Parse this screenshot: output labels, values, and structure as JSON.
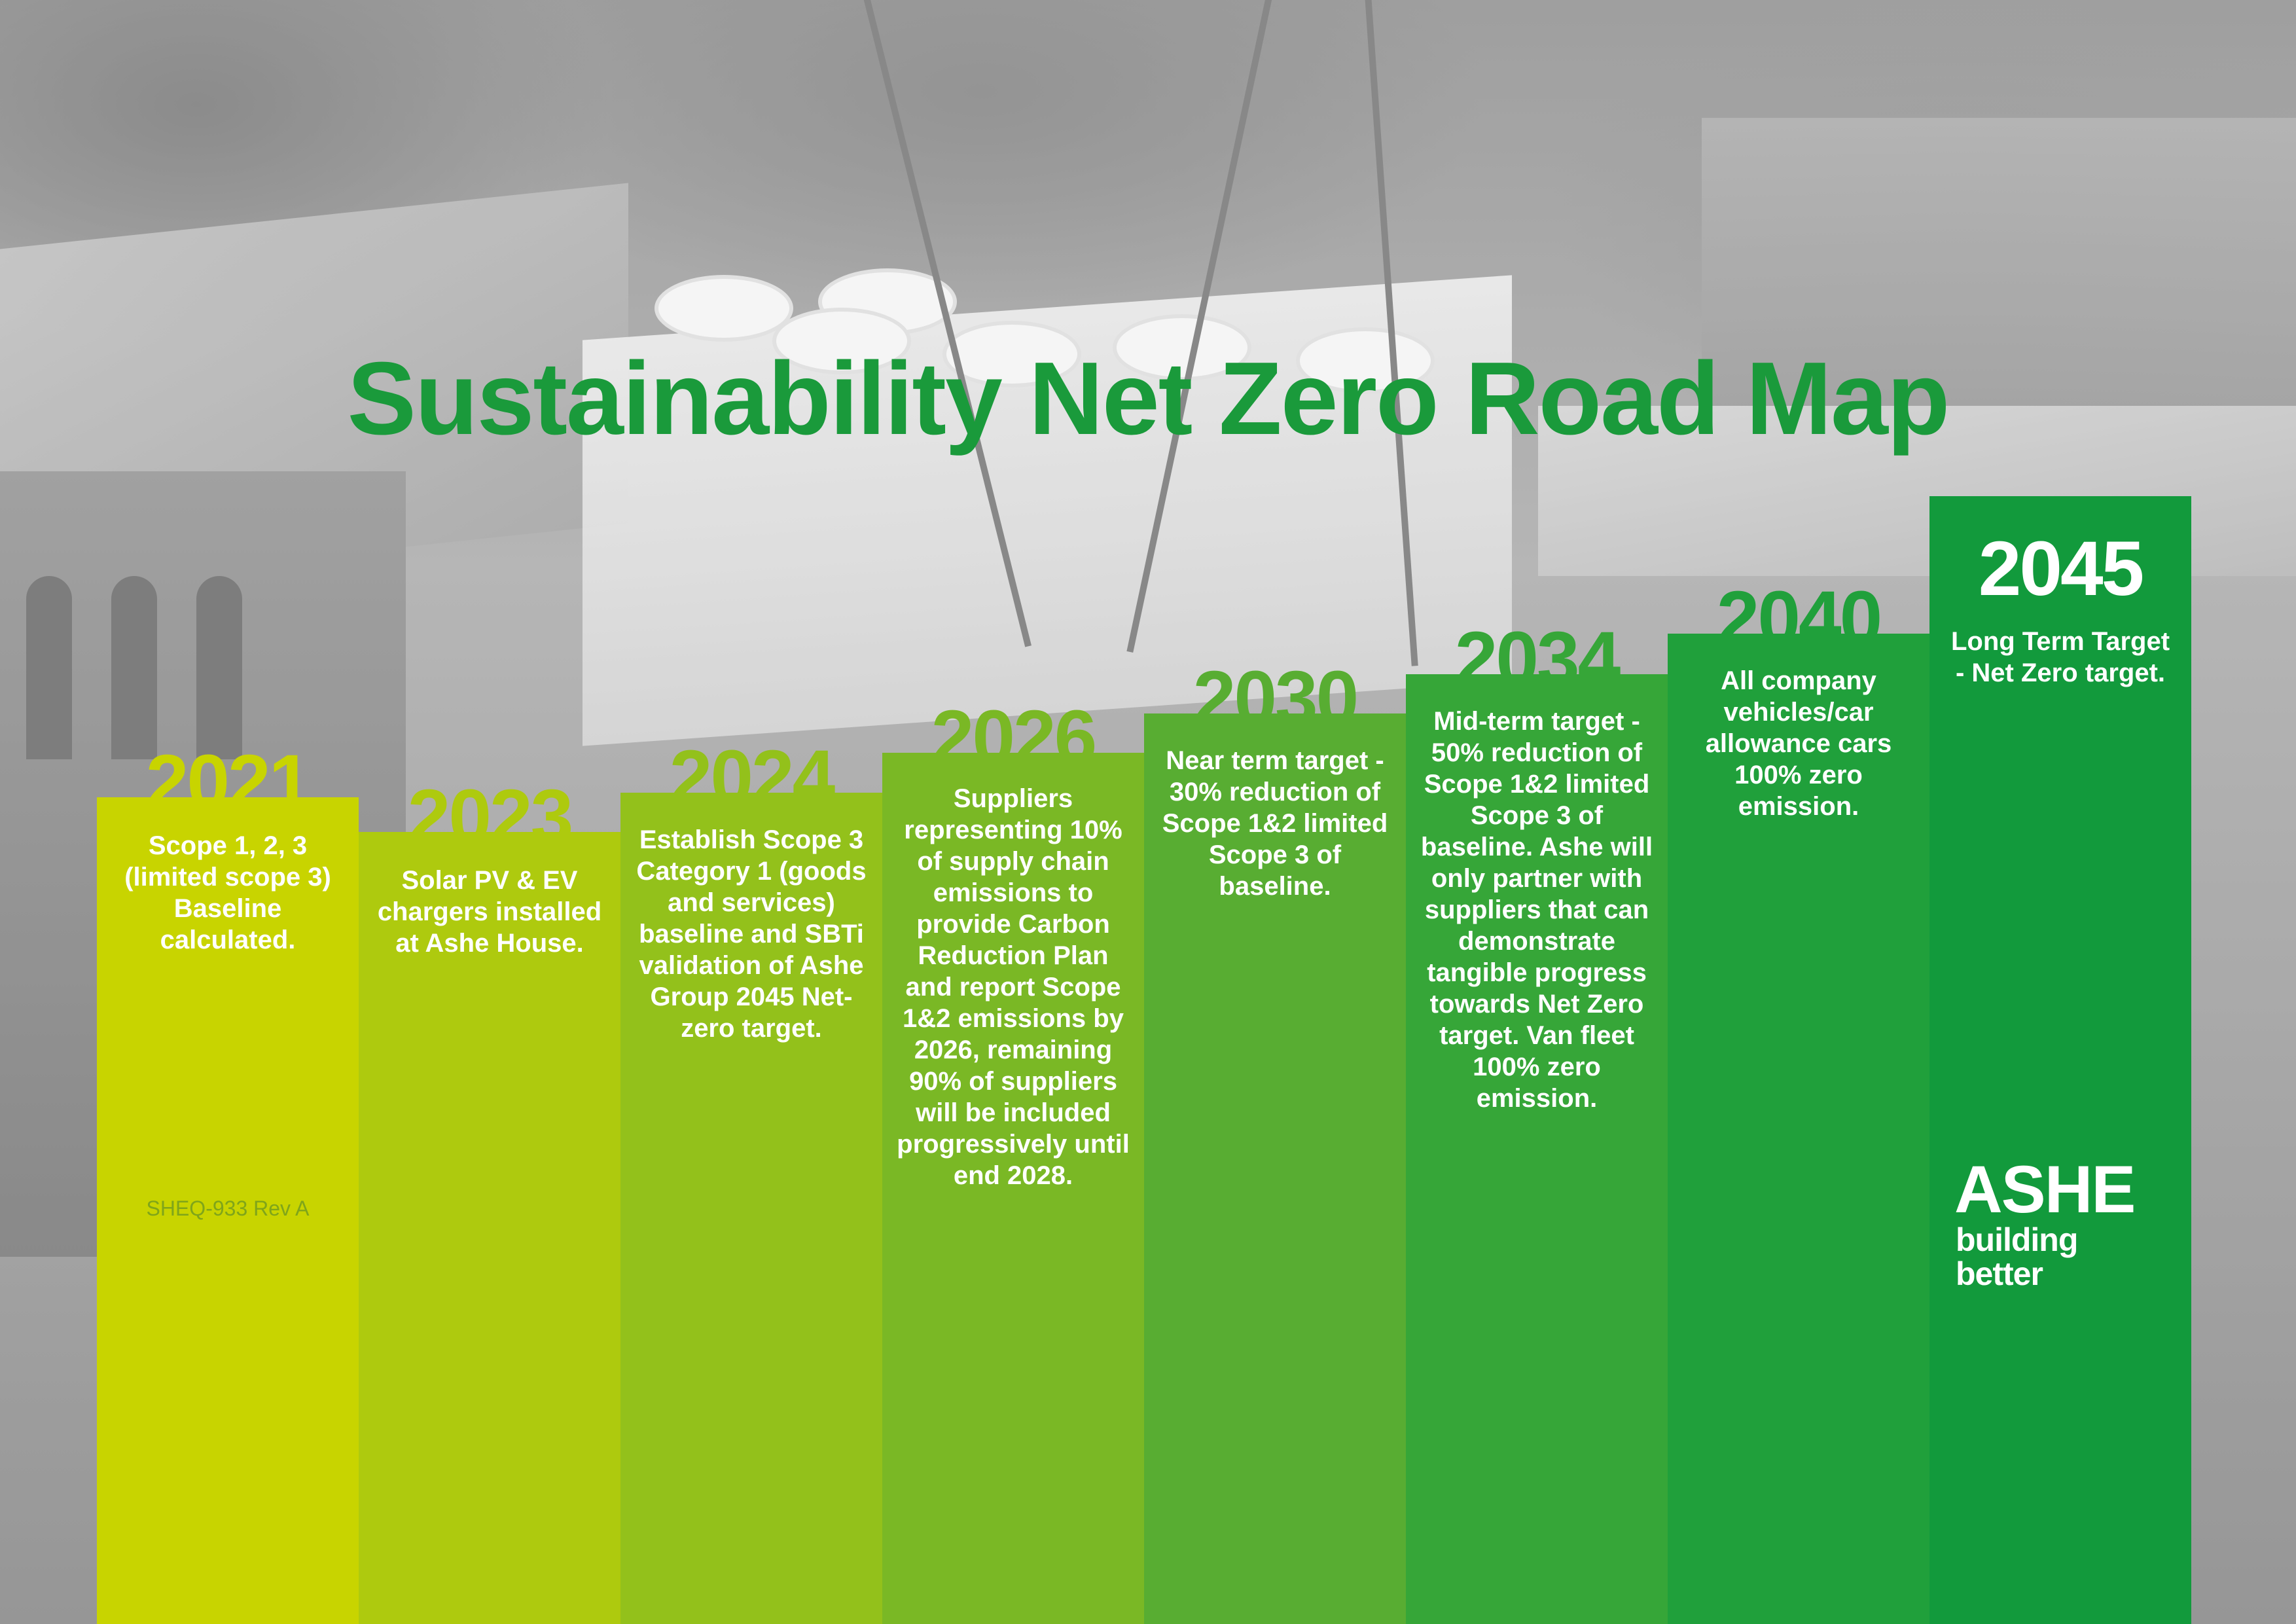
{
  "title": "Sustainability Net Zero Road Map",
  "reference": "SHEQ-933 Rev A",
  "logo": {
    "name": "ASHE",
    "tagline_line1": "building",
    "tagline_line2": "better"
  },
  "milestones": [
    {
      "year": "2021",
      "color": "#c8d400",
      "text": "Scope 1, 2, 3 (limited scope 3) Baseline calculated."
    },
    {
      "year": "2023",
      "color": "#aeca0e",
      "text": "Solar PV & EV chargers installed at Ashe House."
    },
    {
      "year": "2024",
      "color": "#93c11b",
      "text": "Establish Scope 3 Category 1 (goods and services) baseline and SBTi validation of Ashe Group 2045 Net-zero target."
    },
    {
      "year": "2026",
      "color": "#7ab825",
      "text": "Suppliers representing 10% of supply chain emissions to provide Carbon Reduction Plan and report Scope 1&2 emissions by 2026, remaining 90% of suppliers will be included progressively until end 2028."
    },
    {
      "year": "2030",
      "color": "#58ad32",
      "text": "Near term target - 30% reduction of Scope 1&2 limited Scope 3 of baseline."
    },
    {
      "year": "2034",
      "color": "#36a638",
      "text": "Mid-term target - 50% reduction of Scope 1&2 limited Scope 3 of baseline. Ashe will only partner with suppliers that can demonstrate tangible progress towards Net Zero target. Van fleet 100% zero emission."
    },
    {
      "year": "2040",
      "color": "#20a03b",
      "text": "All company vehicles/car allowance cars 100% zero emission."
    },
    {
      "year": "2045",
      "color": "#129a3c",
      "text": "Long Term Target - Net Zero target."
    }
  ]
}
